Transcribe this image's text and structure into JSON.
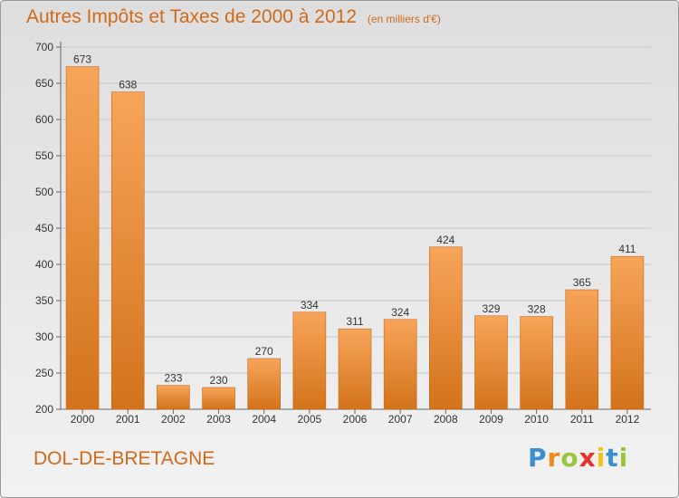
{
  "title": "Autres Impôts et Taxes de 2000 à 2012",
  "unit": "(en milliers d'€)",
  "town": "DOL-DE-BRETAGNE",
  "brand": {
    "letters": [
      "P",
      "r",
      "o",
      "x",
      "i",
      "t",
      "i"
    ],
    "colors": [
      "#3b8fd0",
      "#f08a1c",
      "#9bc53d",
      "#e8332a",
      "#f2c21b",
      "#3b8fd0",
      "#9bc53d"
    ]
  },
  "colors": {
    "accent": "#d06a1a",
    "bar_top": "#f7a55a",
    "bar_bottom": "#d3731b"
  },
  "chart_data": {
    "type": "bar",
    "title": "Autres Impôts et Taxes de 2000 à 2012",
    "categories": [
      "2000",
      "2001",
      "2002",
      "2003",
      "2004",
      "2005",
      "2006",
      "2007",
      "2008",
      "2009",
      "2010",
      "2011",
      "2012"
    ],
    "values": [
      673,
      638,
      233,
      230,
      270,
      334,
      311,
      324,
      424,
      329,
      328,
      365,
      411
    ],
    "ylim": [
      200,
      700
    ],
    "yticks": [
      200,
      250,
      300,
      350,
      400,
      450,
      500,
      550,
      600,
      650,
      700
    ],
    "grid": true,
    "xlabel": "",
    "ylabel": ""
  }
}
